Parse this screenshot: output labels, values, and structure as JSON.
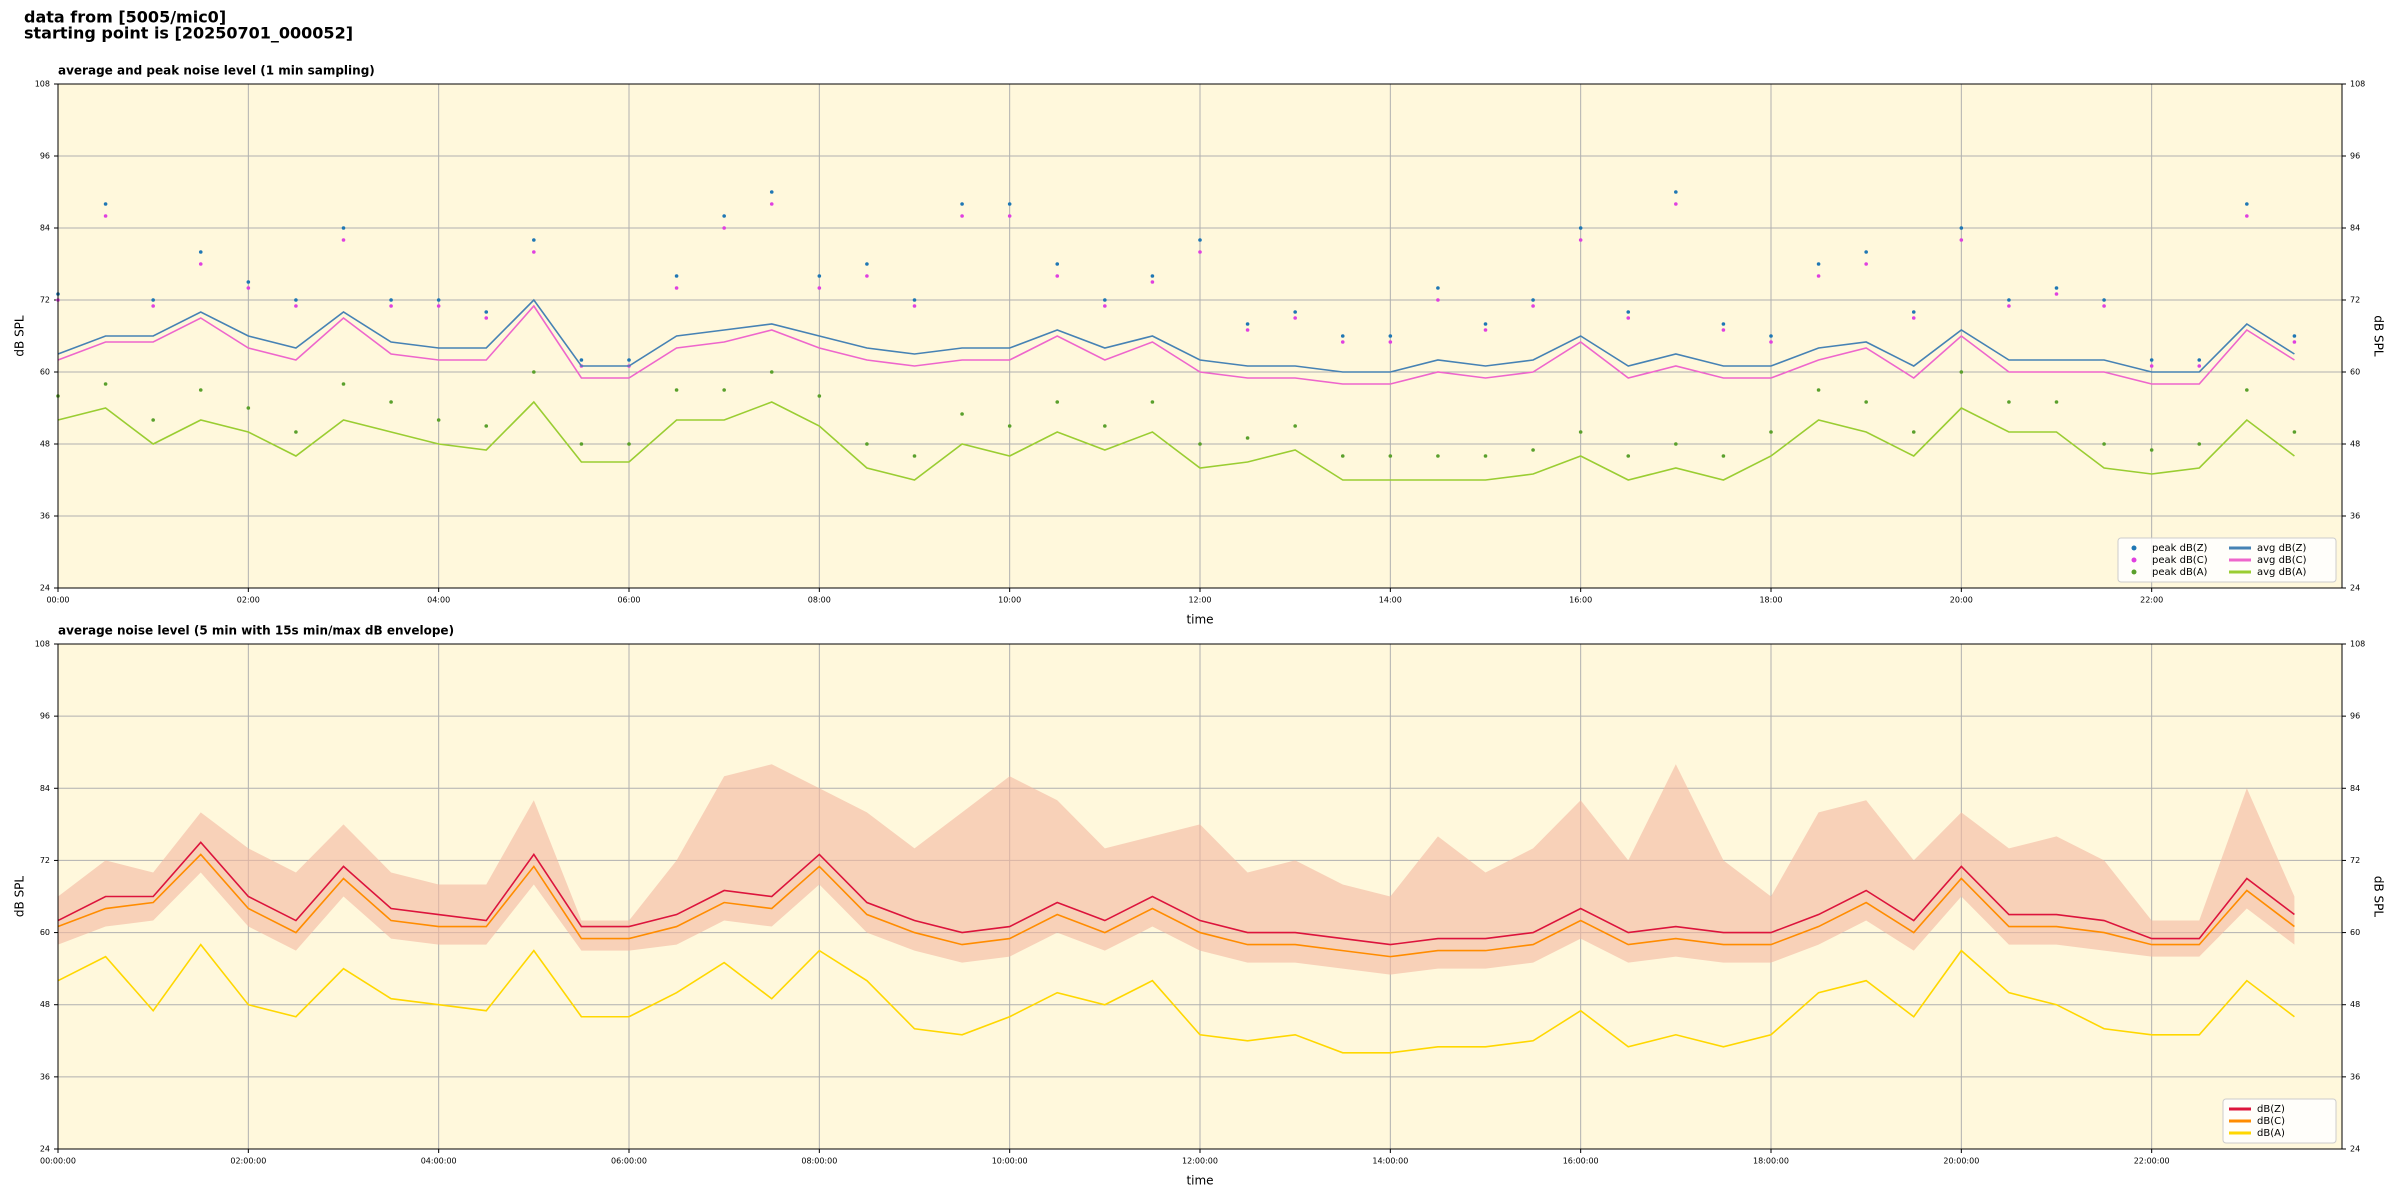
{
  "header": [
    "data from [5005/mic0]",
    "starting point is [20250701_000052]"
  ],
  "chart_data": [
    {
      "type": "line",
      "title": "average and peak noise level (1 min sampling)",
      "xlabel": "time",
      "ylabel": "dB SPL",
      "xlim": [
        0,
        24
      ],
      "ylim": [
        24,
        108
      ],
      "yticks": [
        24,
        36,
        48,
        60,
        72,
        84,
        96,
        108
      ],
      "xticks": [
        {
          "value": 0,
          "label": "00:00"
        },
        {
          "value": 2,
          "label": "02:00"
        },
        {
          "value": 4,
          "label": "04:00"
        },
        {
          "value": 6,
          "label": "06:00"
        },
        {
          "value": 8,
          "label": "08:00"
        },
        {
          "value": 10,
          "label": "10:00"
        },
        {
          "value": 12,
          "label": "12:00"
        },
        {
          "value": 14,
          "label": "14:00"
        },
        {
          "value": 16,
          "label": "16:00"
        },
        {
          "value": 18,
          "label": "18:00"
        },
        {
          "value": 20,
          "label": "20:00"
        },
        {
          "value": 22,
          "label": "22:00"
        }
      ],
      "grid": true,
      "background": "#fff8dc",
      "legend": "lower right",
      "legend_columns": 2,
      "x": [
        0,
        0.5,
        1,
        1.5,
        2,
        2.5,
        3,
        3.5,
        4,
        4.5,
        5,
        5.5,
        6,
        6.5,
        7,
        7.5,
        8,
        8.5,
        9,
        9.5,
        10,
        10.5,
        11,
        11.5,
        12,
        12.5,
        13,
        13.5,
        14,
        14.5,
        15,
        15.5,
        16,
        16.5,
        17,
        17.5,
        18,
        18.5,
        19,
        19.5,
        20,
        20.5,
        21,
        21.5,
        22,
        22.5,
        23,
        23.5
      ],
      "series": [
        {
          "name": "peak dB(Z)",
          "type": "scatter",
          "color": "#1f77b4",
          "values": [
            73,
            88,
            72,
            80,
            75,
            72,
            84,
            72,
            72,
            70,
            82,
            62,
            62,
            76,
            86,
            90,
            76,
            78,
            72,
            88,
            88,
            78,
            72,
            76,
            82,
            68,
            70,
            66,
            66,
            74,
            68,
            72,
            84,
            70,
            90,
            68,
            66,
            78,
            80,
            70,
            84,
            72,
            74,
            72,
            62,
            62,
            88,
            66
          ]
        },
        {
          "name": "peak dB(C)",
          "type": "scatter",
          "color": "#e040e0",
          "values": [
            72,
            86,
            71,
            78,
            74,
            71,
            82,
            71,
            71,
            69,
            80,
            61,
            61,
            74,
            84,
            88,
            74,
            76,
            71,
            86,
            86,
            76,
            71,
            75,
            80,
            67,
            69,
            65,
            65,
            72,
            67,
            71,
            82,
            69,
            88,
            67,
            65,
            76,
            78,
            69,
            82,
            71,
            73,
            71,
            61,
            61,
            86,
            65
          ]
        },
        {
          "name": "peak dB(A)",
          "type": "scatter",
          "color": "#5aa02c",
          "values": [
            56,
            58,
            52,
            57,
            54,
            50,
            58,
            55,
            52,
            51,
            60,
            48,
            48,
            57,
            57,
            60,
            56,
            48,
            46,
            53,
            51,
            55,
            51,
            55,
            48,
            49,
            51,
            46,
            46,
            46,
            46,
            47,
            50,
            46,
            48,
            46,
            50,
            57,
            55,
            50,
            60,
            55,
            55,
            48,
            47,
            48,
            57,
            50
          ]
        },
        {
          "name": "avg dB(Z)",
          "type": "line",
          "color": "#4682b4",
          "values": [
            63,
            66,
            66,
            70,
            66,
            64,
            70,
            65,
            64,
            64,
            72,
            61,
            61,
            66,
            67,
            68,
            66,
            64,
            63,
            64,
            64,
            67,
            64,
            66,
            62,
            61,
            61,
            60,
            60,
            62,
            61,
            62,
            66,
            61,
            63,
            61,
            61,
            64,
            65,
            61,
            67,
            62,
            62,
            62,
            60,
            60,
            68,
            63
          ]
        },
        {
          "name": "avg dB(C)",
          "type": "line",
          "color": "#ee66cc",
          "values": [
            62,
            65,
            65,
            69,
            64,
            62,
            69,
            63,
            62,
            62,
            71,
            59,
            59,
            64,
            65,
            67,
            64,
            62,
            61,
            62,
            62,
            66,
            62,
            65,
            60,
            59,
            59,
            58,
            58,
            60,
            59,
            60,
            65,
            59,
            61,
            59,
            59,
            62,
            64,
            59,
            66,
            60,
            60,
            60,
            58,
            58,
            67,
            62
          ]
        },
        {
          "name": "avg dB(A)",
          "type": "line",
          "color": "#9acd32",
          "values": [
            52,
            54,
            48,
            52,
            50,
            46,
            52,
            50,
            48,
            47,
            55,
            45,
            45,
            52,
            52,
            55,
            51,
            44,
            42,
            48,
            46,
            50,
            47,
            50,
            44,
            45,
            47,
            42,
            42,
            42,
            42,
            43,
            46,
            42,
            44,
            42,
            46,
            52,
            50,
            46,
            54,
            50,
            50,
            44,
            43,
            44,
            52,
            46
          ]
        }
      ]
    },
    {
      "type": "line",
      "title": "average noise level (5 min with 15s min/max dB envelope)",
      "xlabel": "time",
      "ylabel": "dB SPL",
      "xlim": [
        0,
        24
      ],
      "ylim": [
        24,
        108
      ],
      "yticks": [
        24,
        36,
        48,
        60,
        72,
        84,
        96,
        108
      ],
      "xticks": [
        {
          "value": 0,
          "label": "00:00:00"
        },
        {
          "value": 2,
          "label": "02:00:00"
        },
        {
          "value": 4,
          "label": "04:00:00"
        },
        {
          "value": 6,
          "label": "06:00:00"
        },
        {
          "value": 8,
          "label": "08:00:00"
        },
        {
          "value": 10,
          "label": "10:00:00"
        },
        {
          "value": 12,
          "label": "12:00:00"
        },
        {
          "value": 14,
          "label": "14:00:00"
        },
        {
          "value": 16,
          "label": "16:00:00"
        },
        {
          "value": 18,
          "label": "18:00:00"
        },
        {
          "value": 20,
          "label": "20:00:00"
        },
        {
          "value": 22,
          "label": "22:00:00"
        }
      ],
      "grid": true,
      "background": "#fff8dc",
      "legend": "lower right",
      "legend_columns": 1,
      "x": [
        0,
        0.5,
        1,
        1.5,
        2,
        2.5,
        3,
        3.5,
        4,
        4.5,
        5,
        5.5,
        6,
        6.5,
        7,
        7.5,
        8,
        8.5,
        9,
        9.5,
        10,
        10.5,
        11,
        11.5,
        12,
        12.5,
        13,
        13.5,
        14,
        14.5,
        15,
        15.5,
        16,
        16.5,
        17,
        17.5,
        18,
        18.5,
        19,
        19.5,
        20,
        20.5,
        21,
        21.5,
        22,
        22.5,
        23,
        23.5
      ],
      "envelope": {
        "color": "#f4b8a0",
        "lower": [
          58,
          61,
          62,
          70,
          61,
          57,
          66,
          59,
          58,
          58,
          68,
          57,
          57,
          58,
          62,
          61,
          68,
          60,
          57,
          55,
          56,
          60,
          57,
          61,
          57,
          55,
          55,
          54,
          53,
          54,
          54,
          55,
          59,
          55,
          56,
          55,
          55,
          58,
          62,
          57,
          66,
          58,
          58,
          57,
          56,
          56,
          64,
          58
        ],
        "upper": [
          66,
          72,
          70,
          80,
          74,
          70,
          78,
          70,
          68,
          68,
          82,
          62,
          62,
          72,
          86,
          88,
          84,
          80,
          74,
          80,
          86,
          82,
          74,
          76,
          78,
          70,
          72,
          68,
          66,
          76,
          70,
          74,
          82,
          72,
          88,
          72,
          66,
          80,
          82,
          72,
          80,
          74,
          76,
          72,
          62,
          62,
          84,
          66
        ]
      },
      "series": [
        {
          "name": "dB(Z)",
          "type": "line",
          "color": "#dc143c",
          "values": [
            62,
            66,
            66,
            75,
            66,
            62,
            71,
            64,
            63,
            62,
            73,
            61,
            61,
            63,
            67,
            66,
            73,
            65,
            62,
            60,
            61,
            65,
            62,
            66,
            62,
            60,
            60,
            59,
            58,
            59,
            59,
            60,
            64,
            60,
            61,
            60,
            60,
            63,
            67,
            62,
            71,
            63,
            63,
            62,
            59,
            59,
            69,
            63
          ]
        },
        {
          "name": "dB(C)",
          "type": "line",
          "color": "#ff8c00",
          "values": [
            61,
            64,
            65,
            73,
            64,
            60,
            69,
            62,
            61,
            61,
            71,
            59,
            59,
            61,
            65,
            64,
            71,
            63,
            60,
            58,
            59,
            63,
            60,
            64,
            60,
            58,
            58,
            57,
            56,
            57,
            57,
            58,
            62,
            58,
            59,
            58,
            58,
            61,
            65,
            60,
            69,
            61,
            61,
            60,
            58,
            58,
            67,
            61
          ]
        },
        {
          "name": "dB(A)",
          "type": "line",
          "color": "#ffd700",
          "values": [
            52,
            56,
            47,
            58,
            48,
            46,
            54,
            49,
            48,
            47,
            57,
            46,
            46,
            50,
            55,
            49,
            57,
            52,
            44,
            43,
            46,
            50,
            48,
            52,
            43,
            42,
            43,
            40,
            40,
            41,
            41,
            42,
            47,
            41,
            43,
            41,
            43,
            50,
            52,
            46,
            57,
            50,
            48,
            44,
            43,
            43,
            52,
            46
          ]
        }
      ]
    }
  ]
}
